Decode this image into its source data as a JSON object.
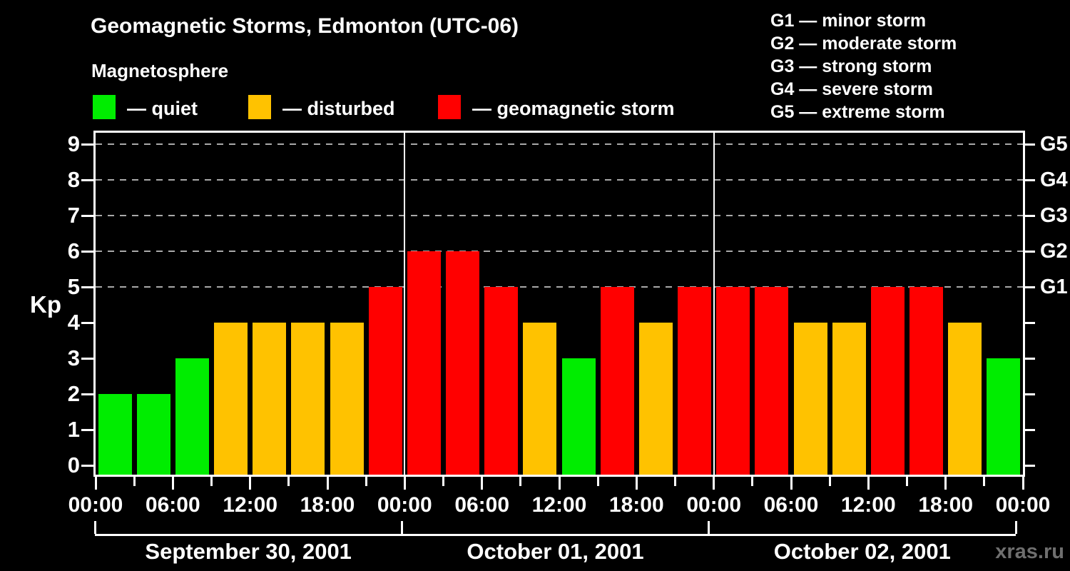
{
  "header": {
    "title": "Geomagnetic Storms, Edmonton (UTC-06)",
    "subtitle": "Magnetosphere"
  },
  "legend": {
    "items": [
      {
        "key": "quiet",
        "label": "— quiet",
        "color": "#00ed00"
      },
      {
        "key": "disturbed",
        "label": "— disturbed",
        "color": "#ffc200"
      },
      {
        "key": "storm",
        "label": "— geomagnetic storm",
        "color": "#ff0000"
      }
    ]
  },
  "storm_scale": {
    "items": [
      "G1 — minor storm",
      "G2 — moderate storm",
      "G3 — strong storm",
      "G4 — severe storm",
      "G5 — extreme storm"
    ]
  },
  "axes": {
    "y_label": "Kp",
    "y_ticks": [
      0,
      1,
      2,
      3,
      4,
      5,
      6,
      7,
      8,
      9
    ],
    "right_labels": [
      {
        "kp": 5,
        "label": "G1"
      },
      {
        "kp": 6,
        "label": "G2"
      },
      {
        "kp": 7,
        "label": "G3"
      },
      {
        "kp": 8,
        "label": "G4"
      },
      {
        "kp": 9,
        "label": "G5"
      }
    ],
    "time_labels": [
      "00:00",
      "06:00",
      "12:00",
      "18:00"
    ]
  },
  "watermark": {
    "text": "xras.ru",
    "color": "#6f6f6f"
  },
  "chart_data": {
    "type": "bar",
    "title": "Geomagnetic Storms, Edmonton (UTC-06)",
    "xlabel": "",
    "ylabel": "Kp",
    "ylim": [
      0,
      9.4
    ],
    "grid": "dashed horizontal lines at Kp 5-9 (G1-G5 thresholds)",
    "gridlines_at": [
      5,
      6,
      7,
      8,
      9
    ],
    "bin_hours": [
      "00:00",
      "03:00",
      "06:00",
      "09:00",
      "12:00",
      "15:00",
      "18:00",
      "21:00"
    ],
    "days": [
      {
        "date": "September 30, 2001",
        "kp": [
          2,
          2,
          3,
          4,
          4,
          4,
          4,
          5
        ],
        "category": [
          "quiet",
          "quiet",
          "quiet",
          "disturbed",
          "disturbed",
          "disturbed",
          "disturbed",
          "storm"
        ]
      },
      {
        "date": "October 01, 2001",
        "kp": [
          6,
          6,
          5,
          4,
          3,
          5,
          4,
          5
        ],
        "category": [
          "storm",
          "storm",
          "storm",
          "disturbed",
          "quiet",
          "storm",
          "disturbed",
          "storm"
        ]
      },
      {
        "date": "October 02, 2001",
        "kp": [
          5,
          5,
          4,
          4,
          5,
          5,
          4,
          3
        ],
        "category": [
          "storm",
          "storm",
          "disturbed",
          "disturbed",
          "storm",
          "storm",
          "disturbed",
          "quiet"
        ]
      }
    ],
    "colors": {
      "quiet": "#00ed00",
      "disturbed": "#ffc200",
      "storm": "#ff0000"
    },
    "color_rule": "Kp<4 quiet (green), Kp=4 disturbed (orange), Kp>=5 geomagnetic storm (red)",
    "legend_position": "top-left swatches; G1-G5 storm scale top-right"
  }
}
